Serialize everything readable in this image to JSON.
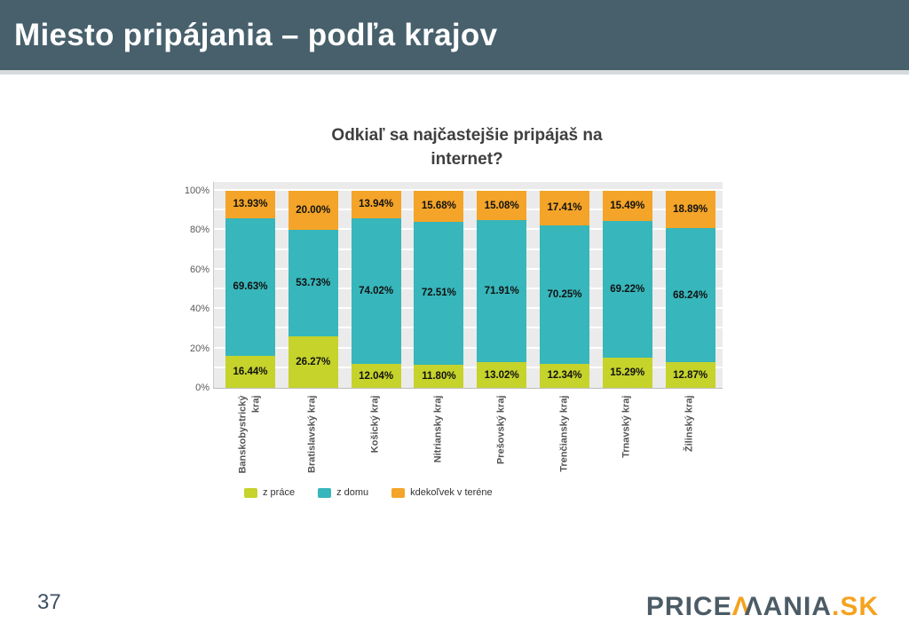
{
  "slide": {
    "header": {
      "title": "Miesto pripájania – podľa krajov",
      "bg_color": "#47606c"
    },
    "footer": {
      "page_number": "37",
      "logo": {
        "part1": "PRICE",
        "m_left": "Λ",
        "m_right": "Λ",
        "part2": "ANIA",
        "suffix": ".SK",
        "slate_color": "#4c5c66",
        "orange_color": "#f5a21f"
      }
    }
  },
  "chart_data": {
    "type": "bar",
    "stacked": true,
    "title": "Odkiaľ sa najčastejšie pripájaš na internet?",
    "categories": [
      "Banskobystrický kraj",
      "Bratislavský kraj",
      "Košický kraj",
      "Nitriansky kraj",
      "Prešovský kraj",
      "Trenčiansky kraj",
      "Trnavský kraj",
      "Žilinský kraj"
    ],
    "series": [
      {
        "name": "z práce",
        "color": "#c5d32b",
        "values": [
          16.44,
          26.27,
          12.04,
          11.8,
          13.02,
          12.34,
          15.29,
          12.87
        ]
      },
      {
        "name": "z domu",
        "color": "#37b6bb",
        "values": [
          69.63,
          53.73,
          74.02,
          72.51,
          71.91,
          70.25,
          69.22,
          68.24
        ]
      },
      {
        "name": "kdekoľvek v teréne",
        "color": "#f4a428",
        "values": [
          13.93,
          20.0,
          13.94,
          15.68,
          15.08,
          17.41,
          15.49,
          18.89
        ]
      }
    ],
    "ylim": [
      0,
      100
    ],
    "y_tick_step": 20,
    "y_minor_grid_step": 10,
    "y_tick_suffix": "%",
    "value_label_format": "0.00%",
    "legend_position": "bottom",
    "plot_bg": "#ebebeb",
    "grid_color": "#ffffff",
    "xlabel": "",
    "ylabel": ""
  }
}
